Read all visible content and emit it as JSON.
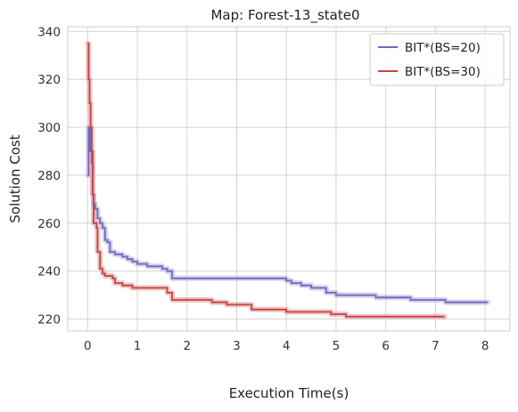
{
  "chart_data": {
    "type": "line",
    "title": "Map: Forest-13_state0",
    "xlabel": "Execution Time(s)",
    "ylabel": "Solution Cost",
    "xlim": [
      -0.4,
      8.5
    ],
    "ylim": [
      215,
      342
    ],
    "xticks": [
      0,
      1,
      2,
      3,
      4,
      5,
      6,
      7,
      8
    ],
    "yticks": [
      220,
      240,
      260,
      280,
      300,
      320,
      340
    ],
    "grid": true,
    "legend_position": "top-right",
    "series": [
      {
        "name": "BIT*(BS=20)",
        "color": "#7068b8",
        "band_color": "#b7b1e4",
        "points": [
          [
            0.0,
            280
          ],
          [
            0.02,
            300
          ],
          [
            0.05,
            290
          ],
          [
            0.08,
            285
          ],
          [
            0.1,
            272
          ],
          [
            0.12,
            268
          ],
          [
            0.15,
            266
          ],
          [
            0.2,
            262
          ],
          [
            0.25,
            260
          ],
          [
            0.3,
            258
          ],
          [
            0.35,
            253
          ],
          [
            0.4,
            252
          ],
          [
            0.45,
            248
          ],
          [
            0.55,
            247
          ],
          [
            0.7,
            246
          ],
          [
            0.8,
            245
          ],
          [
            0.9,
            244
          ],
          [
            1.0,
            243
          ],
          [
            1.2,
            242
          ],
          [
            1.4,
            242
          ],
          [
            1.5,
            241
          ],
          [
            1.6,
            240
          ],
          [
            1.7,
            237
          ],
          [
            2.0,
            237
          ],
          [
            3.0,
            237
          ],
          [
            3.5,
            237
          ],
          [
            4.0,
            236
          ],
          [
            4.1,
            235
          ],
          [
            4.3,
            234
          ],
          [
            4.5,
            233
          ],
          [
            4.8,
            231
          ],
          [
            5.0,
            230
          ],
          [
            5.5,
            230
          ],
          [
            5.8,
            229
          ],
          [
            6.2,
            229
          ],
          [
            6.5,
            228
          ],
          [
            7.0,
            228
          ],
          [
            7.2,
            227
          ],
          [
            8.05,
            227
          ]
        ]
      },
      {
        "name": "BIT*(BS=30)",
        "color": "#c94040",
        "band_color": "#e0a0a0",
        "points": [
          [
            0.0,
            335
          ],
          [
            0.02,
            320
          ],
          [
            0.04,
            310
          ],
          [
            0.06,
            300
          ],
          [
            0.08,
            290
          ],
          [
            0.1,
            272
          ],
          [
            0.12,
            260
          ],
          [
            0.18,
            258
          ],
          [
            0.2,
            248
          ],
          [
            0.25,
            241
          ],
          [
            0.3,
            239
          ],
          [
            0.35,
            238
          ],
          [
            0.5,
            237
          ],
          [
            0.55,
            235
          ],
          [
            0.7,
            234
          ],
          [
            0.9,
            233
          ],
          [
            1.0,
            233
          ],
          [
            1.5,
            233
          ],
          [
            1.6,
            231
          ],
          [
            1.7,
            228
          ],
          [
            2.0,
            228
          ],
          [
            2.4,
            228
          ],
          [
            2.5,
            227
          ],
          [
            2.8,
            226
          ],
          [
            3.0,
            226
          ],
          [
            3.3,
            224
          ],
          [
            3.6,
            224
          ],
          [
            4.0,
            223
          ],
          [
            4.5,
            223
          ],
          [
            4.9,
            222
          ],
          [
            5.2,
            221
          ],
          [
            6.0,
            221
          ],
          [
            7.18,
            221
          ]
        ]
      }
    ]
  }
}
